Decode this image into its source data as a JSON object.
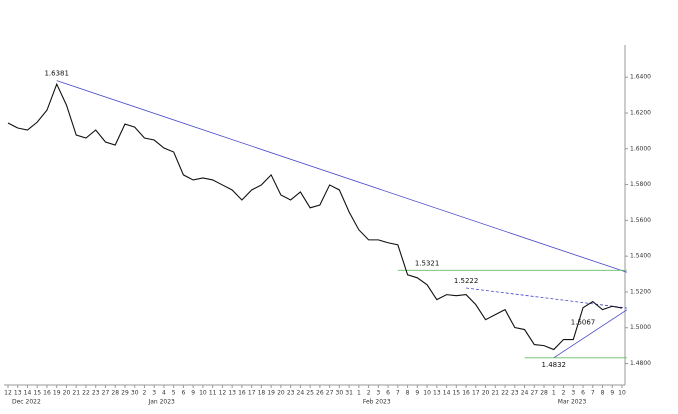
{
  "chart_data": {
    "type": "line",
    "categories": [
      "12",
      "13",
      "14",
      "15",
      "16",
      "19",
      "20",
      "21",
      "22",
      "23",
      "27",
      "28",
      "29",
      "30",
      "2",
      "3",
      "4",
      "5",
      "6",
      "9",
      "10",
      "11",
      "12",
      "13",
      "16",
      "17",
      "18",
      "19",
      "20",
      "23",
      "24",
      "25",
      "26",
      "27",
      "30",
      "31",
      "1",
      "2",
      "3",
      "6",
      "7",
      "8",
      "9",
      "10",
      "13",
      "14",
      "15",
      "16",
      "17",
      "20",
      "21",
      "22",
      "23",
      "24",
      "27",
      "28",
      "1",
      "2",
      "3",
      "6",
      "7",
      "8",
      "9",
      "10"
    ],
    "month_labels": [
      {
        "label": "Dec 2022",
        "start": 0
      },
      {
        "label": "Jan 2023",
        "start": 14
      },
      {
        "label": "Feb 2023",
        "start": 36
      },
      {
        "label": "Mar 2023",
        "start": 56
      }
    ],
    "series": [
      {
        "color": "#111111",
        "values": [
          1.6144,
          1.6116,
          1.6105,
          1.6149,
          1.6216,
          1.6361,
          1.6244,
          1.6077,
          1.606,
          1.6105,
          1.6038,
          1.6021,
          1.6138,
          1.6121,
          1.606,
          1.6049,
          1.6004,
          1.5982,
          1.5854,
          1.5826,
          1.5837,
          1.5826,
          1.5798,
          1.577,
          1.5714,
          1.577,
          1.5798,
          1.5854,
          1.5742,
          1.5714,
          1.5759,
          1.567,
          1.5686,
          1.5798,
          1.577,
          1.5647,
          1.5547,
          1.5491,
          1.5491,
          1.5475,
          1.5463,
          1.5296,
          1.5279,
          1.524,
          1.5157,
          1.5185,
          1.5179,
          1.5185,
          1.5129,
          1.5045,
          1.5073,
          1.5101,
          1.5001,
          1.499,
          1.4906,
          1.49,
          1.4878,
          1.4934,
          1.4934,
          1.5112,
          1.5146,
          1.5101,
          1.512,
          1.511
        ]
      }
    ],
    "ylim": [
      1.468,
      1.658
    ],
    "yticks": [
      {
        "value": 1.48,
        "label": "1.4800"
      },
      {
        "value": 1.5,
        "label": "1.5000"
      },
      {
        "value": 1.52,
        "label": "1.5200"
      },
      {
        "value": 1.54,
        "label": "1.5400"
      },
      {
        "value": 1.56,
        "label": "1.5600"
      },
      {
        "value": 1.58,
        "label": "1.5800"
      },
      {
        "value": 1.6,
        "label": "1.6000"
      },
      {
        "value": 1.62,
        "label": "1.6200"
      },
      {
        "value": 1.64,
        "label": "1.6400"
      }
    ],
    "annotations": [
      {
        "label": "1.6381",
        "value": 1.6381,
        "index": 5
      },
      {
        "label": "1.5321",
        "value": 1.5321,
        "index": 43
      },
      {
        "label": "1.5222",
        "value": 1.5222,
        "index": 47
      },
      {
        "label": "1.5067",
        "value": 1.5067,
        "index": 59
      },
      {
        "label": "1.4832",
        "value": 1.4832,
        "index": 56
      }
    ],
    "trendlines": [
      {
        "color": "#4444cc",
        "dash": false,
        "x": [
          5,
          63.5
        ],
        "y": [
          1.6381,
          1.531
        ]
      },
      {
        "color": "#4444cc",
        "dash": true,
        "x": [
          47,
          63.5
        ],
        "y": [
          1.5222,
          1.511
        ]
      },
      {
        "color": "#4444cc",
        "dash": false,
        "x": [
          56,
          63.5
        ],
        "y": [
          1.4832,
          1.51
        ]
      },
      {
        "color": "#66bb66",
        "dash": false,
        "x": [
          40,
          63.5
        ],
        "y": [
          1.5321,
          1.5321
        ]
      },
      {
        "color": "#66bb66",
        "dash": false,
        "x": [
          53,
          63.5
        ],
        "y": [
          1.4832,
          1.4832
        ]
      }
    ]
  }
}
